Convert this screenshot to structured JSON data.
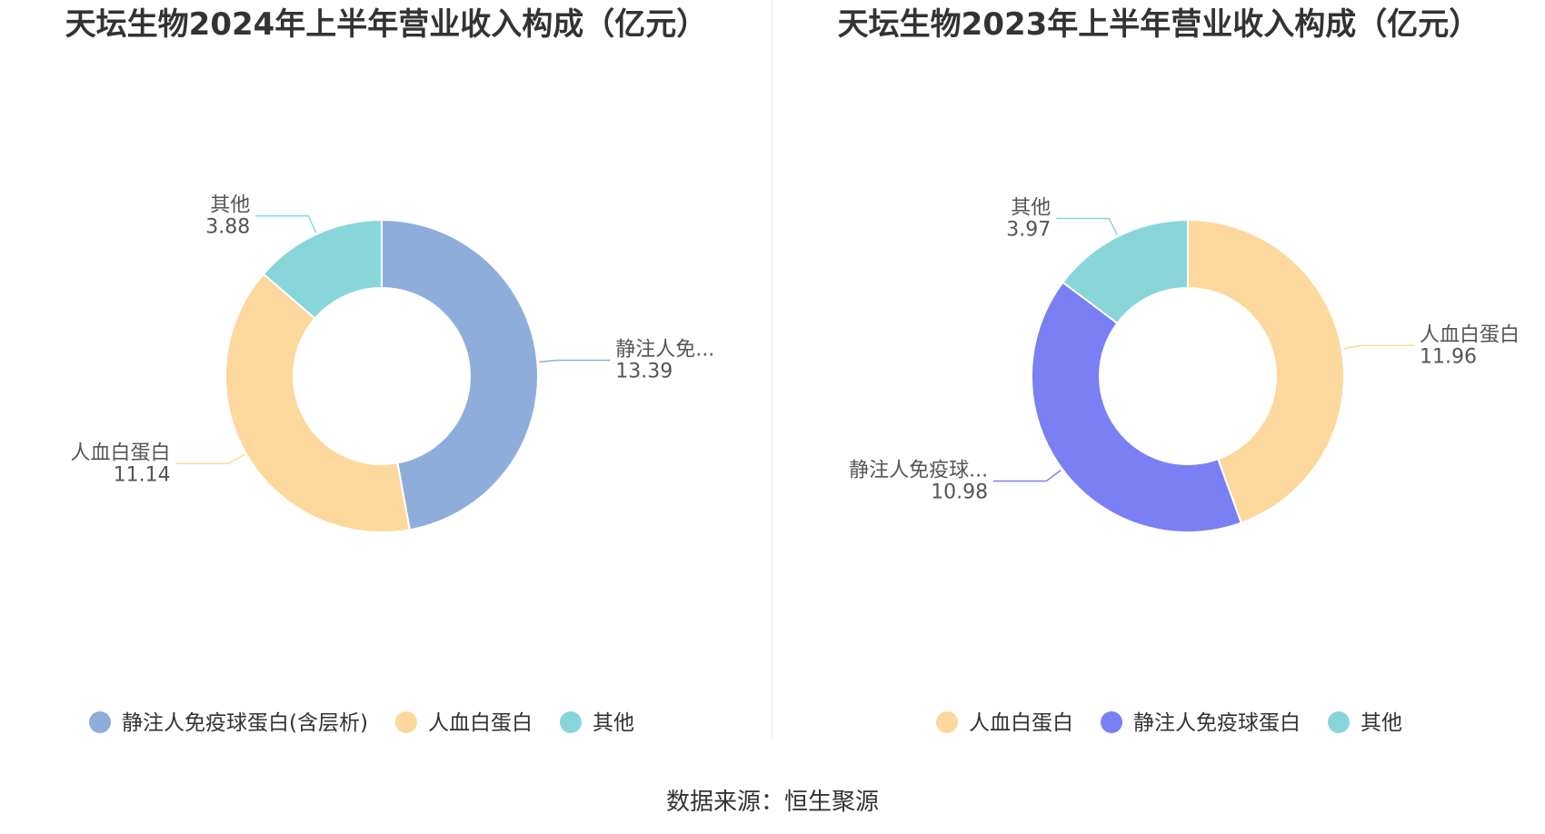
{
  "chart_data": [
    {
      "type": "pie",
      "donut": true,
      "title": "天坛生物2024年上半年营业收入构成（亿元）",
      "series": [
        {
          "name": "静注人免疫球蛋白(含层析)",
          "short_label": "静注人免...",
          "value": 13.39,
          "color": "#8eadda"
        },
        {
          "name": "人血白蛋白",
          "short_label": "人血白蛋白",
          "value": 11.14,
          "color": "#fdd89c"
        },
        {
          "name": "其他",
          "short_label": "其他",
          "value": 3.88,
          "color": "#88d6da"
        }
      ],
      "legend": "bottom"
    },
    {
      "type": "pie",
      "donut": true,
      "title": "天坛生物2023年上半年营业收入构成（亿元）",
      "series": [
        {
          "name": "人血白蛋白",
          "short_label": "人血白蛋白",
          "value": 11.96,
          "color": "#fdd89c"
        },
        {
          "name": "静注人免疫球蛋白",
          "short_label": "静注人免疫球...",
          "value": 10.98,
          "color": "#7b7ff4"
        },
        {
          "name": "其他",
          "short_label": "其他",
          "value": 3.97,
          "color": "#88d6da"
        }
      ],
      "legend": "bottom"
    }
  ],
  "source": "数据来源：恒生聚源"
}
